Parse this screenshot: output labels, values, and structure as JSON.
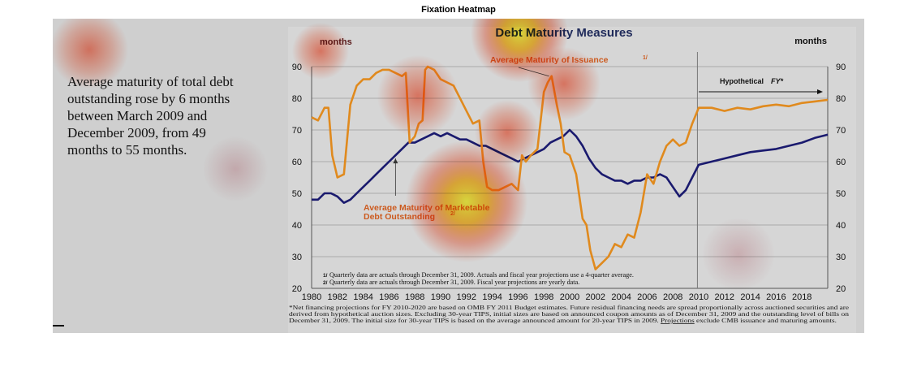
{
  "figure_title": "Fixation Heatmap",
  "slide": {
    "paragraph": "Average maturity of total debt outstanding rose by 6 months between March 2009 and December 2009, from 49 months to 55 months."
  },
  "colors": {
    "marketable_series": "#1a1a6e",
    "issuance_series": "#e08a1e",
    "title_color": "#1f2a5a",
    "annotation_color": "#cc5a1e",
    "slide_background": "#cfcfcf"
  },
  "chart_data": {
    "type": "line",
    "title": "Debt Maturity Measures",
    "ylabel_left": "months",
    "ylabel_right": "months",
    "ylim": [
      20,
      90
    ],
    "yticks": [
      "20",
      "30",
      "40",
      "50",
      "60",
      "70",
      "80",
      "90"
    ],
    "xlim": [
      1980,
      2020
    ],
    "xticks": [
      "1980",
      "1982",
      "1984",
      "1986",
      "1988",
      "1990",
      "1992",
      "1994",
      "1996",
      "1998",
      "2000",
      "2002",
      "2004",
      "2006",
      "2008",
      "2010",
      "2012",
      "2014",
      "2016",
      "2018"
    ],
    "projection_start": 2009.9,
    "hypothetical_label": "Hypothetical",
    "hypothetical_fy": "FY*",
    "series": [
      {
        "name": "Average Maturity of Marketable Debt Outstanding",
        "name_line1": "Average Maturity of Marketable",
        "name_line2": "Debt Outstanding",
        "note_marker": "2/",
        "color": "#1a1a6e",
        "x": [
          1980,
          1980.5,
          1981,
          1981.5,
          1982,
          1982.5,
          1983,
          1983.5,
          1984,
          1984.5,
          1985,
          1985.5,
          1986,
          1986.5,
          1987,
          1987.5,
          1988,
          1988.5,
          1989,
          1989.5,
          1990,
          1990.5,
          1991,
          1991.5,
          1992,
          1992.5,
          1993,
          1993.5,
          1994,
          1994.5,
          1995,
          1995.5,
          1996,
          1996.5,
          1997,
          1997.5,
          1998,
          1998.5,
          1999,
          1999.5,
          2000,
          2000.5,
          2001,
          2001.5,
          2002,
          2002.5,
          2003,
          2003.5,
          2004,
          2004.5,
          2005,
          2005.5,
          2006,
          2006.5,
          2007,
          2007.5,
          2008,
          2008.5,
          2009,
          2009.5,
          2010,
          2011,
          2012,
          2013,
          2014,
          2015,
          2016,
          2017,
          2018,
          2019,
          2020
        ],
        "values": [
          48,
          48,
          50,
          50,
          49,
          47,
          48,
          50,
          52,
          54,
          56,
          58,
          60,
          62,
          64,
          66,
          66,
          67,
          68,
          69,
          68,
          69,
          68,
          67,
          67,
          66,
          65,
          65,
          64,
          63,
          62,
          61,
          60,
          61,
          62,
          63,
          64,
          66,
          67,
          68,
          70,
          68,
          65,
          61,
          58,
          56,
          55,
          54,
          54,
          53,
          54,
          54,
          55,
          55,
          56,
          55,
          52,
          49,
          51,
          55,
          59,
          60,
          61,
          62,
          63,
          63.5,
          64,
          65,
          66,
          67.5,
          68.5
        ]
      },
      {
        "name": "Average Maturity of Issuance",
        "note_marker": "1/",
        "color": "#e08a1e",
        "x": [
          1980,
          1980.5,
          1981,
          1981.3,
          1981.6,
          1982,
          1982.5,
          1983,
          1983.5,
          1984,
          1984.5,
          1985,
          1985.5,
          1986,
          1986.5,
          1987,
          1987.3,
          1987.6,
          1988,
          1988.3,
          1988.6,
          1988.8,
          1989,
          1989.5,
          1990,
          1990.5,
          1991,
          1991.5,
          1992,
          1992.5,
          1993,
          1993.3,
          1993.6,
          1994,
          1994.5,
          1995,
          1995.5,
          1996,
          1996.3,
          1996.6,
          1997,
          1997.5,
          1998,
          1998.3,
          1998.6,
          1999,
          1999.3,
          1999.6,
          2000,
          2000.5,
          2001,
          2001.3,
          2001.6,
          2002,
          2002.5,
          2003,
          2003.5,
          2004,
          2004.5,
          2005,
          2005.5,
          2006,
          2006.5,
          2007,
          2007.5,
          2008,
          2008.5,
          2009,
          2009.5,
          2010,
          2011,
          2012,
          2013,
          2014,
          2015,
          2016,
          2017,
          2018,
          2019,
          2020
        ],
        "values": [
          74,
          73,
          77,
          77,
          62,
          55,
          56,
          78,
          84,
          86,
          86,
          88,
          89,
          89,
          88,
          87,
          88,
          66,
          68,
          72,
          73,
          89,
          90,
          89,
          86,
          85,
          84,
          80,
          76,
          72,
          73,
          60,
          52,
          51,
          51,
          52,
          53,
          51,
          62,
          60,
          62,
          64,
          82,
          85,
          87,
          78,
          72,
          63,
          62,
          56,
          42,
          40,
          32,
          26,
          28,
          30,
          34,
          33,
          37,
          36,
          44,
          56,
          53,
          60,
          65,
          67,
          65,
          66,
          72,
          77,
          77,
          76,
          77,
          76.5,
          77.5,
          78,
          77.5,
          78.5,
          79,
          79.5
        ]
      }
    ],
    "footnote_1": "Quarterly data are actuals through December 31, 2009.   Actuals and fiscal year projections use a 4-quarter average.",
    "footnote_2": "Quarterly data are actuals through December 31, 2009.   Fiscal year projections are yearly data.",
    "note_line1": "*Net financing projections for FY 2010-2020 are based on OMB FY 2011 Budget estimates. Future residual financing needs are spread proportionally across auctioned securities and are",
    "note_line2": "derived from hypothetical auction sizes. Excluding 30-year TIPS, initial sizes are based on announced coupon amounts as of December 31, 2009 and the outstanding level of bills on",
    "note_line3_pre": "December 31, 2009. The initial size for 30-year TIPS is based on the average announced amount for 20-year TIPS in 2009. ",
    "note_line3_link": "Projections",
    "note_line3_post": " exclude CMB issuance and maturing amounts."
  }
}
